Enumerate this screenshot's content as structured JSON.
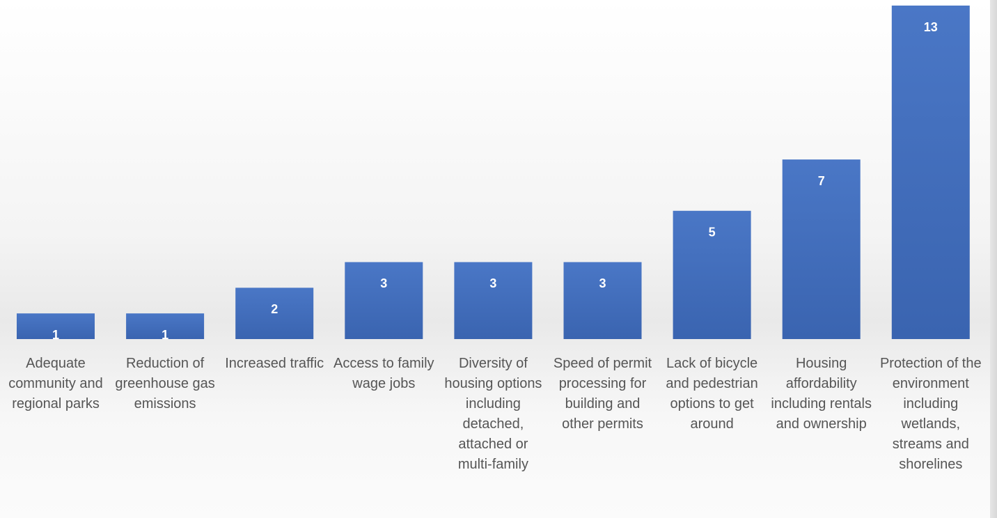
{
  "chart_data": {
    "type": "bar",
    "categories": [
      "Adequate community and regional parks",
      "Reduction of greenhouse gas emissions",
      "Increased traffic",
      "Access to family wage jobs",
      "Diversity of housing options including detached, attached or multi-family",
      "Speed of permit processing for building and other permits",
      "Lack of bicycle and pedestrian options to get around",
      "Housing affordability including rentals and ownership",
      "Protection of the environment including wetlands, streams and shorelines"
    ],
    "values": [
      1,
      1,
      2,
      3,
      3,
      3,
      5,
      7,
      13
    ],
    "color": "#4472c4"
  }
}
